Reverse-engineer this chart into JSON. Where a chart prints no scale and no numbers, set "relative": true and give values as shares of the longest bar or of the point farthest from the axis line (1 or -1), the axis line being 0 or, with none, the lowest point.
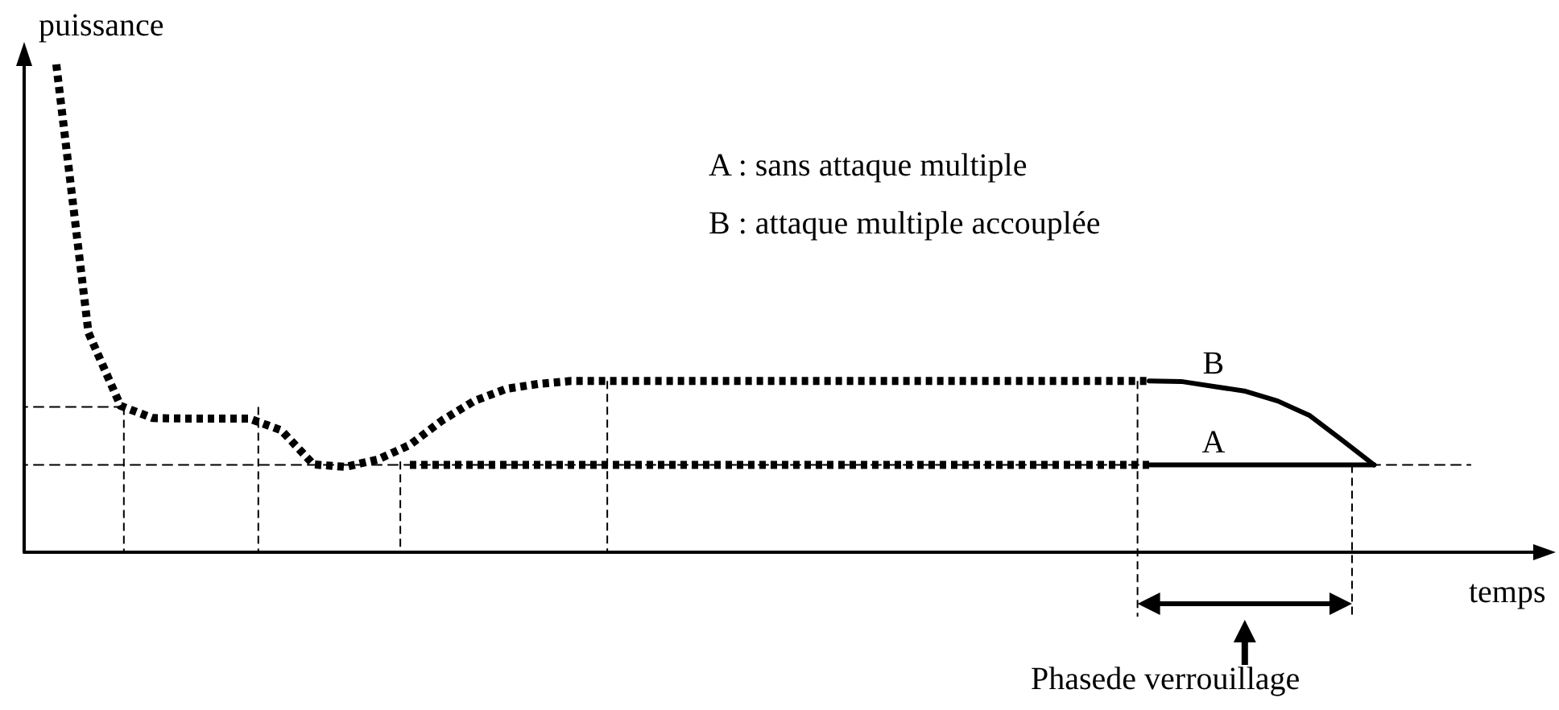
{
  "chart_data": {
    "type": "line",
    "relative": true,
    "xlabel": "temps",
    "ylabel": "puissance",
    "tick_labels": false,
    "grid": false,
    "categories": [
      null,
      null,
      null,
      null,
      null,
      null,
      null,
      null,
      null,
      null,
      null,
      null,
      null,
      null,
      null,
      null,
      null,
      null,
      null,
      null,
      null,
      null,
      null,
      null,
      null,
      null,
      null,
      null,
      null,
      null,
      null,
      null,
      null,
      null,
      null,
      null,
      null,
      null,
      null,
      null,
      null,
      null,
      null,
      null,
      null,
      null,
      null,
      null
    ],
    "series": [
      {
        "color": "#000000",
        "line_style": "dotted",
        "values": [
          null,
          1.0,
          0.45,
          0.3,
          0.275,
          0.274,
          0.274,
          0.274,
          0.25,
          0.18,
          0.175,
          0.19,
          0.22,
          0.27,
          0.31,
          0.335,
          0.345,
          0.351,
          0.351,
          0.351,
          0.351,
          0.351,
          0.351,
          0.351,
          0.351,
          0.351,
          0.351,
          0.351,
          0.351,
          0.351,
          0.351,
          0.351,
          0.351,
          0.351,
          0.351,
          0.351,
          null,
          null,
          null,
          null,
          null,
          null,
          null,
          null,
          null,
          null,
          null,
          null
        ]
      },
      {
        "color": "#000000",
        "line_style": "dotted",
        "values": [
          null,
          null,
          null,
          null,
          null,
          null,
          null,
          null,
          null,
          null,
          null,
          null,
          0.179,
          0.179,
          0.179,
          0.179,
          0.179,
          0.179,
          0.179,
          0.179,
          0.179,
          0.179,
          0.179,
          0.179,
          0.179,
          0.179,
          0.179,
          0.179,
          0.179,
          0.179,
          0.179,
          0.179,
          0.179,
          0.179,
          0.179,
          0.179,
          null,
          null,
          null,
          null,
          null,
          null,
          null,
          null,
          null,
          null,
          null,
          null
        ]
      },
      {
        "name": "B",
        "color": "#000000",
        "line_style": "solid",
        "values": [
          null,
          null,
          null,
          null,
          null,
          null,
          null,
          null,
          null,
          null,
          null,
          null,
          null,
          null,
          null,
          null,
          null,
          null,
          null,
          null,
          null,
          null,
          null,
          null,
          null,
          null,
          null,
          null,
          null,
          null,
          null,
          null,
          null,
          null,
          null,
          0.351,
          0.35,
          0.34,
          0.33,
          0.31,
          0.28,
          0.23,
          0.179,
          null,
          null,
          null,
          null,
          null
        ]
      },
      {
        "name": "A",
        "color": "#000000",
        "line_style": "solid",
        "values": [
          null,
          null,
          null,
          null,
          null,
          null,
          null,
          null,
          null,
          null,
          null,
          null,
          null,
          null,
          null,
          null,
          null,
          null,
          null,
          null,
          null,
          null,
          null,
          null,
          null,
          null,
          null,
          null,
          null,
          null,
          null,
          null,
          null,
          null,
          null,
          0.179,
          0.179,
          0.179,
          0.179,
          0.179,
          0.179,
          0.179,
          0.179,
          null,
          null,
          null,
          null,
          null
        ]
      },
      {
        "color": "#000000",
        "line_style": "dashed",
        "values": [
          0.179,
          0.179,
          0.179,
          0.179,
          0.179,
          0.179,
          0.179,
          0.179,
          0.179,
          0.179,
          0.179,
          0.179,
          0.179,
          0.179,
          0.179,
          0.179,
          0.179,
          0.179,
          0.179,
          0.179,
          0.179,
          0.179,
          0.179,
          0.179,
          0.179,
          0.179,
          0.179,
          0.179,
          0.179,
          0.179,
          0.179,
          0.179,
          0.179,
          0.179,
          0.179,
          0.179,
          0.179,
          0.179,
          0.179,
          0.179,
          0.179,
          0.179,
          0.179,
          0.179,
          0.179,
          0.179,
          null,
          null
        ]
      },
      {
        "color": "#000000",
        "line_style": "dashed",
        "values": [
          0.298,
          0.298,
          0.298,
          0.298,
          null,
          null,
          null,
          null,
          null,
          null,
          null,
          null,
          null,
          null,
          null,
          null,
          null,
          null,
          null,
          null,
          null,
          null,
          null,
          null,
          null,
          null,
          null,
          null,
          null,
          null,
          null,
          null,
          null,
          null,
          null,
          null,
          null,
          null,
          null,
          null,
          null,
          null,
          null,
          null,
          null,
          null,
          null,
          null
        ]
      }
    ],
    "annotations": [
      "A : sans attaque multiple",
      "B : attaque multiple accouplée",
      "Phasede verrouillage"
    ]
  }
}
